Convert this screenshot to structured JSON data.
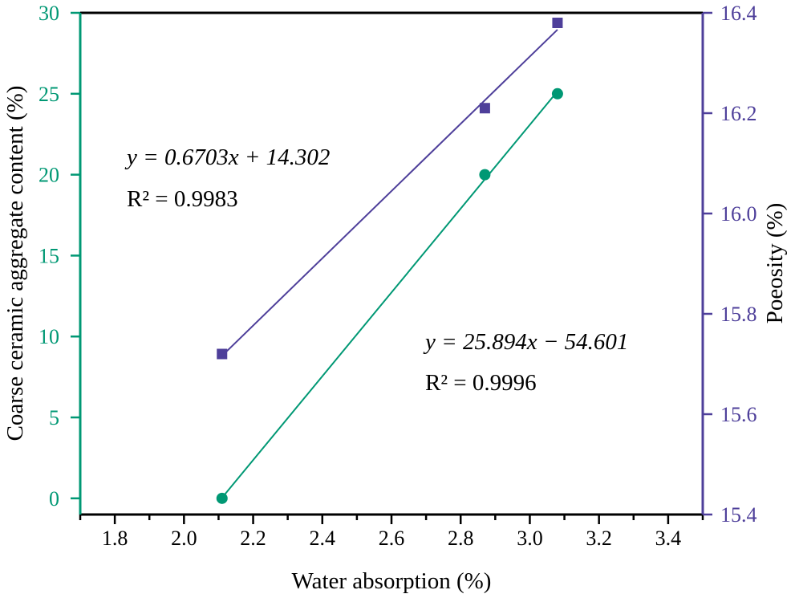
{
  "chart_data": {
    "type": "scatter",
    "title": "",
    "xlabel": "Water absorption (%)",
    "ylabel_left": "Coarse ceramic aggregate content (%)",
    "ylabel_right": "Poeosity (%)",
    "xlim": [
      1.7,
      3.5
    ],
    "ylim_left": [
      -1,
      30
    ],
    "ylim_right": [
      15.4,
      16.4
    ],
    "x_ticks": [
      "1.8",
      "2.0",
      "2.2",
      "2.4",
      "2.6",
      "2.8",
      "3.0",
      "3.2",
      "3.4"
    ],
    "y_left_ticks": [
      "0",
      "5",
      "10",
      "15",
      "20",
      "25",
      "30"
    ],
    "y_right_ticks": [
      "15.4",
      "15.6",
      "15.8",
      "16.0",
      "16.2",
      "16.4"
    ],
    "grid": false,
    "series": [
      {
        "name": "Coarse ceramic aggregate content",
        "axis": "left",
        "marker": "circle",
        "color": "#009874",
        "x": [
          2.11,
          2.87,
          3.08
        ],
        "y": [
          0,
          20,
          25
        ],
        "fit": {
          "slope": 25.894,
          "intercept": -54.601,
          "equation": "y = 25.894x − 54.601",
          "r2": "R² = 0.9996"
        }
      },
      {
        "name": "Poeosity",
        "axis": "right",
        "marker": "square",
        "color": "#4e3f9a",
        "x": [
          2.11,
          2.87,
          3.08
        ],
        "y": [
          15.72,
          16.21,
          16.38
        ],
        "fit": {
          "slope": 0.6703,
          "intercept": 14.302,
          "equation": "y = 0.6703x + 14.302",
          "r2": "R² = 0.9983"
        }
      }
    ]
  }
}
